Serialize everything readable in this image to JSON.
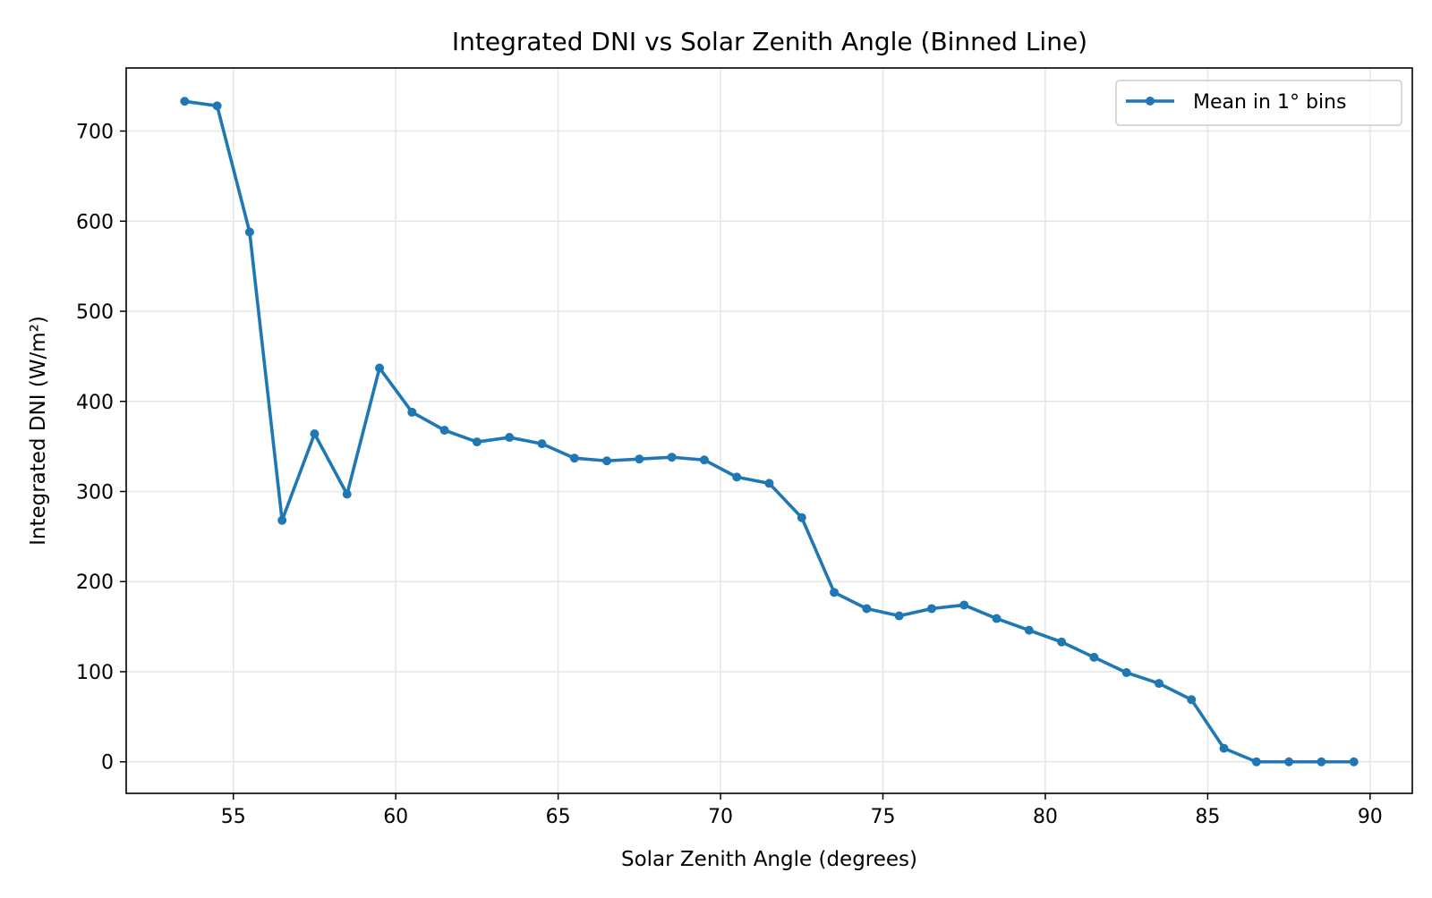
{
  "chart_data": {
    "type": "line",
    "title": "Integrated DNI vs Solar Zenith Angle (Binned Line)",
    "xlabel": "Solar Zenith Angle (degrees)",
    "ylabel": "Integrated DNI (W/m²)",
    "xlim": [
      51.7,
      91.3
    ],
    "ylim": [
      -35,
      770
    ],
    "xticks": [
      55,
      60,
      65,
      70,
      75,
      80,
      85,
      90
    ],
    "yticks": [
      0,
      100,
      200,
      300,
      400,
      500,
      600,
      700
    ],
    "grid": true,
    "legend_position": "top-right",
    "series": [
      {
        "name": "Mean in 1° bins",
        "color": "#1f77b4",
        "marker": "circle",
        "x": [
          53.5,
          54.5,
          55.5,
          56.5,
          57.5,
          58.5,
          59.5,
          60.5,
          61.5,
          62.5,
          63.5,
          64.5,
          65.5,
          66.5,
          67.5,
          68.5,
          69.5,
          70.5,
          71.5,
          72.5,
          73.5,
          74.5,
          75.5,
          76.5,
          77.5,
          78.5,
          79.5,
          80.5,
          81.5,
          82.5,
          83.5,
          84.5,
          85.5,
          86.5,
          87.5,
          88.5,
          89.5
        ],
        "y": [
          733,
          728,
          588,
          268,
          364,
          297,
          437,
          388,
          368,
          355,
          360,
          353,
          337,
          334,
          336,
          338,
          335,
          316,
          309,
          271,
          188,
          170,
          162,
          170,
          174,
          159,
          146,
          133,
          116,
          99,
          87,
          69,
          15,
          0,
          0,
          0,
          0
        ]
      }
    ]
  }
}
